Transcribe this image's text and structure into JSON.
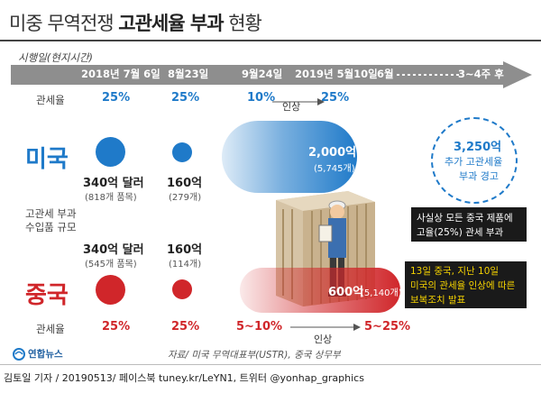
{
  "title": {
    "light": "미중 무역전쟁 ",
    "bold": "고관세율 부과",
    "light2": " 현황"
  },
  "timeline": {
    "label": "시행일(현지시간)",
    "dates": [
      "2018년 7월 6일",
      "8월23일",
      "9월24일",
      "2019년 5월10일",
      "6월",
      "3~4주 후"
    ]
  },
  "rows": {
    "tariff_label_top": "관세율",
    "tariff_label_bottom": "관세율",
    "scale_label": "고관세 부과\n수입품 규모"
  },
  "us": {
    "name": "미국",
    "tariffs": [
      "25%",
      "25%",
      "10%",
      "25%"
    ],
    "raise_label": "인상",
    "amounts": [
      {
        "value": "340억 달러",
        "items": "(818개 품목)"
      },
      {
        "value": "160억",
        "items": "(279개)"
      },
      {
        "value": "2,000억",
        "items": "(5,745개)"
      }
    ],
    "future": {
      "value": "3,250억",
      "line1": "추가 고관세율",
      "line2": "부과 경고"
    },
    "note": {
      "line1": "사실상 모든 중국 제품에",
      "line2": "고율(25%) 관세 부과"
    }
  },
  "china": {
    "name": "중국",
    "tariffs": [
      "25%",
      "25%",
      "5~10%",
      "5~25%"
    ],
    "raise_label": "인상",
    "amounts": [
      {
        "value": "340억 달러",
        "items": "(545개 품목)"
      },
      {
        "value": "160억",
        "items": "(114개)"
      },
      {
        "value": "600억",
        "items": "(5,140개)"
      }
    ],
    "note": {
      "line1": "13일 중국, 지난 10일",
      "line2": "미국의 관세율 인상에 따른",
      "line3": "보복조치 발표"
    }
  },
  "source": "자료/ 미국 무역대표부(USTR), 중국 상무부",
  "agency": "연합뉴스",
  "credit": "김토일 기자 / 20190513/ 페이스북 tuney.kr/LeYN1, 트위터 @yonhap_graphics",
  "colors": {
    "us": "#1f7ac9",
    "china": "#d0262a",
    "arrow": "#8e8e8e",
    "note_bg": "#1a1a1a",
    "note_fg": "#f5d200"
  }
}
